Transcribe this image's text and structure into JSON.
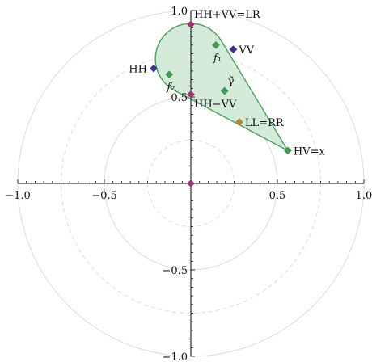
{
  "chart_data": {
    "type": "scatter",
    "coordinate_system": "polar plot with cartesian axes",
    "xlim": [
      -1.0,
      1.0
    ],
    "ylim": [
      -1.0,
      1.0
    ],
    "x_ticks": [
      -1.0,
      -0.5,
      0.5,
      1.0
    ],
    "x_tick_labels": [
      "−1.0",
      "−0.5",
      "0.5",
      "1.0"
    ],
    "y_ticks": [
      -1.0,
      -0.5,
      0.5,
      1.0
    ],
    "y_tick_labels": [
      "−1.0",
      "−0.5",
      "0.5",
      "1.0"
    ],
    "radial_circles": [
      {
        "r": 0.25,
        "style": "dashed"
      },
      {
        "r": 0.5,
        "style": "solid"
      },
      {
        "r": 0.75,
        "style": "dashed"
      },
      {
        "r": 1.0,
        "style": "solid"
      }
    ],
    "region": {
      "color": "#4aa05e",
      "fill": "#cfe9d5",
      "circle": {
        "cx": 0.0,
        "cy": 0.72,
        "r": 0.205
      },
      "cone_apex": [
        0.56,
        0.19
      ]
    },
    "points": [
      {
        "label": "HH+VV=LR",
        "x": 0.0,
        "y": 0.92,
        "color": "#a0336e",
        "label_pos": "right-above"
      },
      {
        "label": "VV",
        "x": 0.245,
        "y": 0.775,
        "color": "#35358f",
        "label_pos": "right"
      },
      {
        "label": "HH",
        "x": -0.215,
        "y": 0.665,
        "color": "#35358f",
        "label_pos": "left"
      },
      {
        "label": "HH−VV",
        "x": 0.0,
        "y": 0.515,
        "color": "#a0336e",
        "label_pos": "right-below"
      },
      {
        "label": "LL=RR",
        "x": 0.28,
        "y": 0.355,
        "color": "#b08a3c",
        "label_pos": "right"
      },
      {
        "label": "HV=x",
        "x": 0.56,
        "y": 0.19,
        "color": "#3e9a55",
        "label_pos": "right"
      },
      {
        "label": "f₁",
        "x": 0.145,
        "y": 0.8,
        "color": "#3e9a55",
        "label_pos": "below"
      },
      {
        "label": "f₂",
        "x": -0.125,
        "y": 0.63,
        "color": "#3e9a55",
        "label_pos": "below"
      },
      {
        "label": "γ̃",
        "x": 0.195,
        "y": 0.535,
        "color": "#3e9a55",
        "label_pos": "right-above"
      },
      {
        "label": "",
        "x": 0.0,
        "y": 0.0,
        "color": "#a0336e",
        "label_pos": "none"
      }
    ]
  }
}
